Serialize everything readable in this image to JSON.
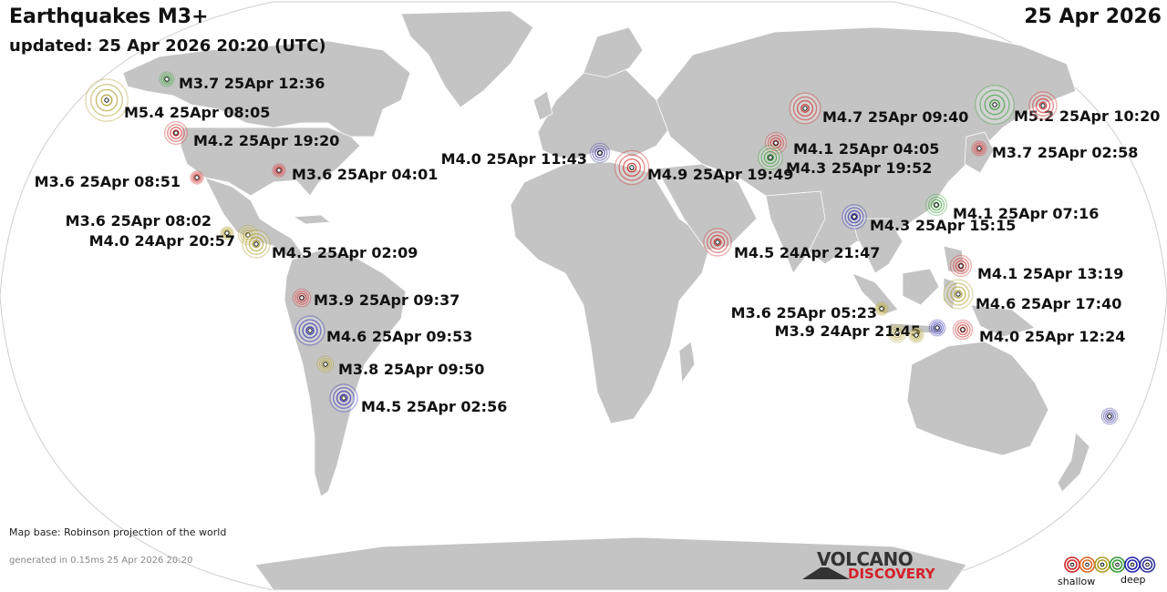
{
  "header": {
    "title": "Earthquakes M3+",
    "updated": "updated: 25 Apr 2026 20:20 (UTC)",
    "date": "25 Apr 2026"
  },
  "footer": {
    "map_base": "Map base: Robinson projection of the world",
    "generated": "generated in 0.15ms 25 Apr 2026 20:20",
    "brand_line1": "VOLCANO",
    "brand_line2": "DISCOVERY"
  },
  "legend": {
    "shallow_label": "shallow",
    "deep_label": "deep",
    "colors": [
      "#cc2222",
      "#dd6622",
      "#aa9922",
      "#339933",
      "#2222aa",
      "#333399"
    ]
  },
  "colors": {
    "land": "#c4c4c4",
    "ocean": "#ffffff",
    "shallow": "#cc2222",
    "intermediate": "#aa9922",
    "mid_deep": "#339933",
    "deep": "#2222aa",
    "very_deep": "#333399",
    "brand_red": "#d4202a"
  },
  "quakes": [
    {
      "id": "alaska-m37",
      "label": "M3.7 25Apr 12:36",
      "mag": 3.7,
      "depth_class": "mid_deep"
    },
    {
      "id": "aleutian-m54",
      "label": "M5.4 25Apr 08:05",
      "mag": 5.4,
      "depth_class": "intermediate"
    },
    {
      "id": "canada-m42",
      "label": "M4.2 25Apr 19:20",
      "mag": 4.2,
      "depth_class": "shallow"
    },
    {
      "id": "california-m36",
      "label": "M3.6 25Apr 08:51",
      "mag": 3.6,
      "depth_class": "shallow"
    },
    {
      "id": "gulf-m36",
      "label": "M3.6 25Apr 04:01",
      "mag": 3.6,
      "depth_class": "shallow"
    },
    {
      "id": "mexico-m36",
      "label": "M3.6 25Apr 08:02",
      "mag": 3.6,
      "depth_class": "intermediate"
    },
    {
      "id": "mexico-m40",
      "label": "M4.0 24Apr 20:57",
      "mag": 4.0,
      "depth_class": "intermediate"
    },
    {
      "id": "centralam-m45",
      "label": "M4.5 25Apr 02:09",
      "mag": 4.5,
      "depth_class": "intermediate"
    },
    {
      "id": "colombia-m39",
      "label": "M3.9 25Apr 09:37",
      "mag": 3.9,
      "depth_class": "shallow"
    },
    {
      "id": "peru-m46",
      "label": "M4.6 25Apr 09:53",
      "mag": 4.6,
      "depth_class": "deep"
    },
    {
      "id": "peru-m38",
      "label": "M3.8 25Apr 09:50",
      "mag": 3.8,
      "depth_class": "intermediate"
    },
    {
      "id": "argentina-m45",
      "label": "M4.5 25Apr 02:56",
      "mag": 4.5,
      "depth_class": "deep"
    },
    {
      "id": "mediterranean-m40",
      "label": "M4.0 25Apr 11:43",
      "mag": 4.0,
      "depth_class": "very_deep"
    },
    {
      "id": "greece-m49",
      "label": "M4.9 25Apr 19:49",
      "mag": 4.9,
      "depth_class": "shallow"
    },
    {
      "id": "oman-m45",
      "label": "M4.5 24Apr 21:47",
      "mag": 4.5,
      "depth_class": "shallow"
    },
    {
      "id": "russia-m47",
      "label": "M4.7 25Apr 09:40",
      "mag": 4.7,
      "depth_class": "shallow"
    },
    {
      "id": "centralasia-m41",
      "label": "M4.1 25Apr 04:05",
      "mag": 4.1,
      "depth_class": "shallow"
    },
    {
      "id": "centralasia-m43",
      "label": "M4.3 25Apr 19:52",
      "mag": 4.3,
      "depth_class": "mid_deep"
    },
    {
      "id": "kamchatka-m52",
      "label": "M5.2 25Apr 10:20",
      "mag": 5.2,
      "depth_class": "mid_deep"
    },
    {
      "id": "kamchatka2",
      "label": "",
      "mag": 4.5,
      "depth_class": "shallow"
    },
    {
      "id": "japan-m37",
      "label": "M3.7 25Apr 02:58",
      "mag": 3.7,
      "depth_class": "shallow"
    },
    {
      "id": "myanmar-m43",
      "label": "M4.3 25Apr 15:15",
      "mag": 4.3,
      "depth_class": "deep"
    },
    {
      "id": "taiwan-m41",
      "label": "M4.1 25Apr 07:16",
      "mag": 4.1,
      "depth_class": "mid_deep"
    },
    {
      "id": "philippines-m41",
      "label": "M4.1 25Apr 13:19",
      "mag": 4.1,
      "depth_class": "shallow"
    },
    {
      "id": "philippines-m46",
      "label": "M4.6 25Apr 17:40",
      "mag": 4.6,
      "depth_class": "intermediate"
    },
    {
      "id": "indonesia-m36",
      "label": "M3.6 25Apr 05:23",
      "mag": 3.6,
      "depth_class": "intermediate"
    },
    {
      "id": "indonesia-m39",
      "label": "M3.9 24Apr 21:45",
      "mag": 3.9,
      "depth_class": "intermediate"
    },
    {
      "id": "indonesia2",
      "label": "",
      "mag": 3.7,
      "depth_class": "intermediate"
    },
    {
      "id": "banda-deep",
      "label": "",
      "mag": 3.8,
      "depth_class": "deep"
    },
    {
      "id": "banda-m40",
      "label": "M4.0 25Apr 12:24",
      "mag": 4.0,
      "depth_class": "shallow"
    },
    {
      "id": "tonga-deep",
      "label": "",
      "mag": 3.8,
      "depth_class": "very_deep"
    }
  ]
}
